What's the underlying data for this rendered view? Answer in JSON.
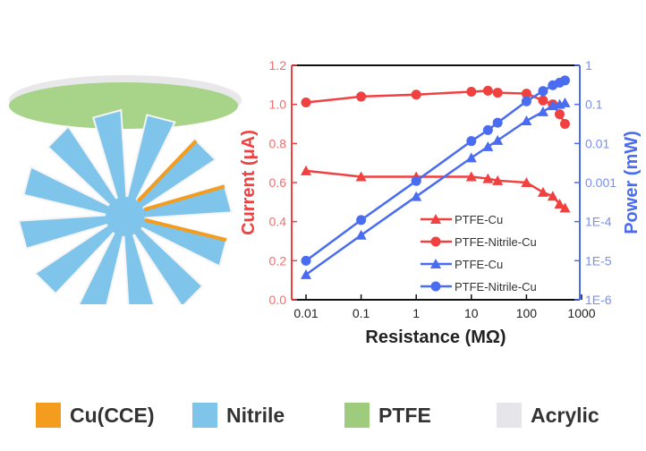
{
  "illustration": {
    "layers": [
      "PTFE",
      "Nitrile",
      "Cu(CCE)"
    ]
  },
  "legend": [
    {
      "label": "Cu(CCE)",
      "color": "#f39c1e"
    },
    {
      "label": "Nitrile",
      "color": "#7fc4ea"
    },
    {
      "label": "PTFE",
      "color": "#9ccc7c"
    },
    {
      "label": "Acrylic",
      "color": "#e6e6ea"
    }
  ],
  "chart_data": {
    "type": "line",
    "xlabel": "Resistance (MΩ)",
    "ylabel": "Current (μA)",
    "y2label": "Power (mW)",
    "xscale": "log",
    "xlim": [
      0.005,
      1000
    ],
    "xticks": [
      "0.01",
      "0.1",
      "1",
      "10",
      "100",
      "1000"
    ],
    "ylim": [
      0,
      1.2
    ],
    "yticks": [
      "0.0",
      "0.2",
      "0.4",
      "0.6",
      "0.8",
      "1.0",
      "1.2"
    ],
    "y2scale": "log",
    "y2lim": [
      1e-06,
      1
    ],
    "y2ticks": [
      "1E-6",
      "1E-5",
      "1E-4",
      "0.001",
      "0.01",
      "0.1",
      "1"
    ],
    "x": [
      0.01,
      0.1,
      1,
      10,
      20,
      30,
      100,
      200,
      300,
      400,
      500
    ],
    "legend_position": "center-right",
    "series": [
      {
        "name": "PTFE-Cu",
        "axis": "left",
        "marker": "triangle",
        "color": "#f04040",
        "values": [
          0.66,
          0.63,
          0.63,
          0.63,
          0.62,
          0.61,
          0.6,
          0.55,
          0.53,
          0.49,
          0.47
        ]
      },
      {
        "name": "PTFE-Nitrile-Cu",
        "axis": "left",
        "marker": "circle",
        "color": "#f04040",
        "values": [
          1.01,
          1.04,
          1.05,
          1.065,
          1.07,
          1.06,
          1.055,
          1.02,
          1.0,
          0.95,
          0.9
        ]
      },
      {
        "name": "PTFE-Cu",
        "axis": "right",
        "marker": "triangle",
        "color": "#4a6cf0",
        "values": [
          4.4e-06,
          4.5e-05,
          0.00044,
          0.0043,
          0.0083,
          0.012,
          0.038,
          0.065,
          0.093,
          0.1,
          0.11
        ]
      },
      {
        "name": "PTFE-Nitrile-Cu",
        "axis": "right",
        "marker": "circle",
        "color": "#4a6cf0",
        "values": [
          1e-05,
          0.00011,
          0.0011,
          0.0115,
          0.022,
          0.034,
          0.12,
          0.22,
          0.31,
          0.36,
          0.41
        ]
      }
    ]
  }
}
